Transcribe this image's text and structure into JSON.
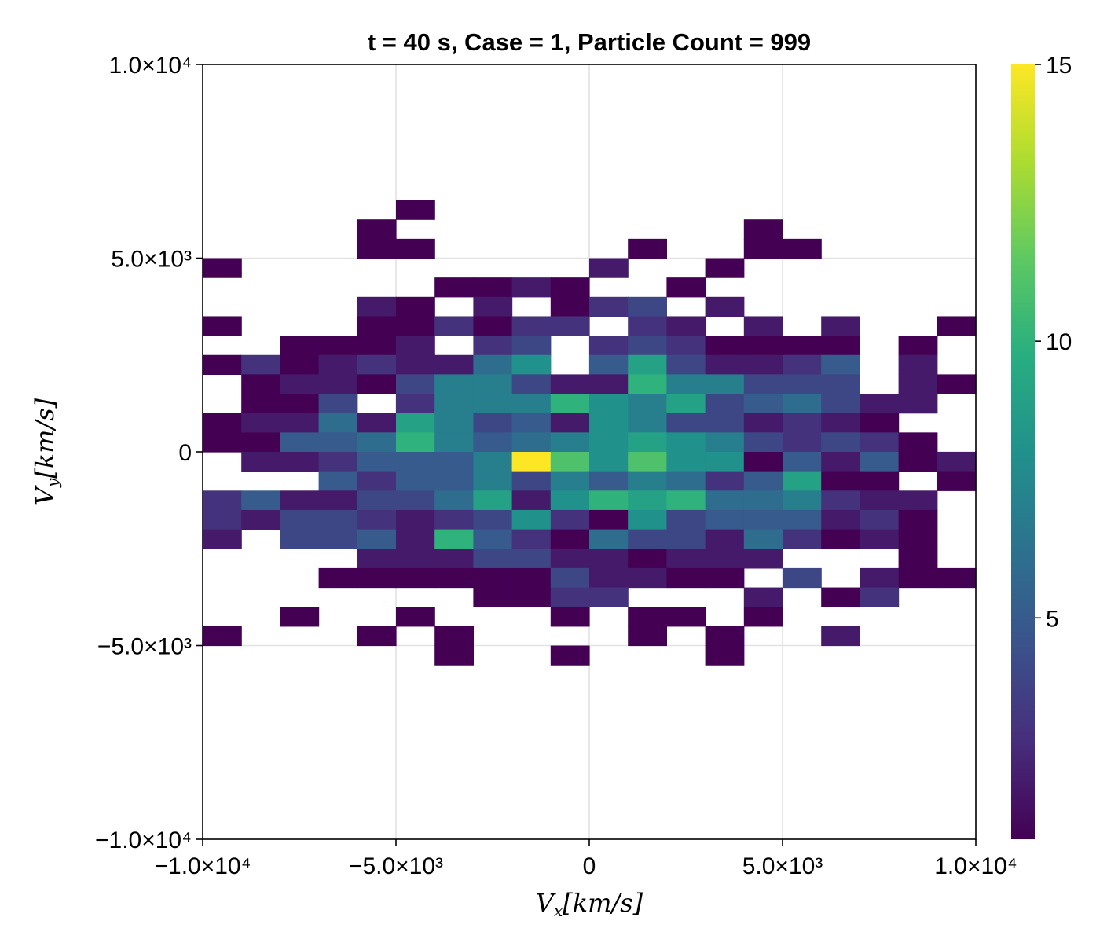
{
  "chart_data": {
    "type": "heatmap",
    "title": "t = 40 s, Case = 1, Particle Count = 999",
    "xlabel": "V_x[km/s]",
    "ylabel": "V_y[km/s]",
    "xlim": [
      -10000,
      10000
    ],
    "ylim": [
      -10000,
      10000
    ],
    "x_ticks": [
      {
        "value": -10000,
        "label": "−1.0×10⁴"
      },
      {
        "value": -5000,
        "label": "−5.0×10³"
      },
      {
        "value": 0,
        "label": "0"
      },
      {
        "value": 5000,
        "label": "5.0×10³"
      },
      {
        "value": 10000,
        "label": "1.0×10⁴"
      }
    ],
    "y_ticks": [
      {
        "value": -10000,
        "label": "−1.0×10⁴"
      },
      {
        "value": -5000,
        "label": "−5.0×10³"
      },
      {
        "value": 0,
        "label": "0"
      },
      {
        "value": 5000,
        "label": "5.0×10³"
      },
      {
        "value": 10000,
        "label": "1.0×10⁴"
      }
    ],
    "grid": true,
    "colormap": "viridis",
    "colorbar": {
      "range": [
        1,
        15
      ],
      "ticks": [
        {
          "value": 5,
          "label": "5"
        },
        {
          "value": 10,
          "label": "10"
        },
        {
          "value": 15,
          "label": "15"
        }
      ]
    },
    "bin_x_edges": [
      -10000,
      -9000,
      -8000,
      -7000,
      -6000,
      -5000,
      -4000,
      -3000,
      -2000,
      -1000,
      0,
      1000,
      2000,
      3000,
      4000,
      5000,
      6000,
      7000,
      8000,
      9000,
      10000
    ],
    "bin_y_top": 6500,
    "bin_y_height": 500,
    "rows_top_to_bottom": [
      [
        0,
        0,
        0,
        0,
        0,
        1,
        0,
        0,
        0,
        0,
        0,
        0,
        0,
        0,
        0,
        0,
        0,
        0,
        0,
        0
      ],
      [
        0,
        0,
        0,
        0,
        1,
        0,
        0,
        0,
        0,
        0,
        0,
        0,
        0,
        0,
        1,
        0,
        0,
        0,
        0,
        0
      ],
      [
        0,
        0,
        0,
        0,
        1,
        1,
        0,
        0,
        0,
        0,
        0,
        1,
        0,
        0,
        1,
        1,
        0,
        0,
        0,
        0
      ],
      [
        1,
        0,
        0,
        0,
        0,
        0,
        0,
        0,
        0,
        0,
        2,
        0,
        0,
        1,
        0,
        0,
        0,
        0,
        0,
        0
      ],
      [
        0,
        0,
        0,
        0,
        0,
        0,
        1,
        1,
        2,
        1,
        0,
        0,
        1,
        0,
        0,
        0,
        0,
        0,
        0,
        0
      ],
      [
        0,
        0,
        0,
        0,
        2,
        1,
        0,
        2,
        0,
        1,
        3,
        4,
        0,
        2,
        0,
        0,
        0,
        0,
        0,
        0
      ],
      [
        1,
        0,
        0,
        0,
        1,
        1,
        3,
        1,
        3,
        3,
        0,
        3,
        2,
        0,
        2,
        0,
        2,
        0,
        0,
        1
      ],
      [
        0,
        0,
        1,
        1,
        1,
        2,
        0,
        3,
        4,
        0,
        3,
        4,
        3,
        1,
        1,
        1,
        1,
        0,
        1,
        0
      ],
      [
        1,
        3,
        1,
        2,
        3,
        2,
        2,
        6,
        8,
        0,
        5,
        9,
        4,
        2,
        2,
        3,
        5,
        0,
        2,
        0
      ],
      [
        0,
        1,
        2,
        2,
        1,
        4,
        7,
        7,
        4,
        2,
        2,
        10,
        7,
        7,
        4,
        4,
        4,
        0,
        2,
        1
      ],
      [
        0,
        1,
        1,
        4,
        0,
        3,
        7,
        7,
        7,
        10,
        8,
        7,
        9,
        4,
        5,
        6,
        4,
        2,
        2,
        0
      ],
      [
        1,
        2,
        2,
        6,
        2,
        9,
        7,
        4,
        5,
        2,
        8,
        7,
        4,
        4,
        2,
        3,
        2,
        1,
        0,
        0
      ],
      [
        1,
        1,
        5,
        5,
        6,
        10,
        7,
        5,
        6,
        7,
        8,
        9,
        8,
        7,
        4,
        3,
        4,
        3,
        1,
        0
      ],
      [
        0,
        2,
        2,
        3,
        5,
        5,
        5,
        7,
        15,
        11,
        8,
        11,
        8,
        8,
        1,
        5,
        2,
        5,
        1,
        2
      ],
      [
        0,
        0,
        0,
        5,
        3,
        5,
        5,
        7,
        4,
        7,
        5,
        7,
        6,
        3,
        5,
        9,
        1,
        1,
        0,
        1
      ],
      [
        3,
        5,
        2,
        2,
        4,
        4,
        6,
        9,
        2,
        8,
        10,
        9,
        10,
        6,
        6,
        7,
        3,
        2,
        2,
        0
      ],
      [
        3,
        2,
        4,
        4,
        3,
        2,
        3,
        4,
        8,
        3,
        1,
        8,
        4,
        5,
        5,
        5,
        2,
        3,
        1,
        0
      ],
      [
        2,
        0,
        4,
        4,
        5,
        2,
        10,
        5,
        3,
        1,
        6,
        4,
        4,
        2,
        6,
        3,
        1,
        2,
        1,
        0
      ],
      [
        0,
        0,
        0,
        0,
        2,
        2,
        2,
        4,
        4,
        2,
        2,
        1,
        2,
        2,
        2,
        0,
        0,
        0,
        1,
        0
      ],
      [
        0,
        0,
        0,
        1,
        1,
        1,
        1,
        1,
        1,
        4,
        2,
        2,
        1,
        1,
        0,
        4,
        0,
        2,
        1,
        1
      ],
      [
        0,
        0,
        0,
        0,
        0,
        0,
        0,
        1,
        1,
        3,
        3,
        0,
        0,
        0,
        2,
        0,
        1,
        3,
        0,
        0
      ],
      [
        0,
        0,
        1,
        0,
        0,
        1,
        0,
        0,
        0,
        1,
        0,
        1,
        1,
        0,
        1,
        0,
        0,
        0,
        0,
        0
      ],
      [
        1,
        0,
        0,
        0,
        1,
        0,
        1,
        0,
        0,
        0,
        0,
        1,
        0,
        1,
        0,
        0,
        2,
        0,
        0,
        0
      ],
      [
        0,
        0,
        0,
        0,
        0,
        0,
        1,
        0,
        0,
        1,
        0,
        0,
        0,
        1,
        0,
        0,
        0,
        0,
        0,
        0
      ]
    ]
  }
}
